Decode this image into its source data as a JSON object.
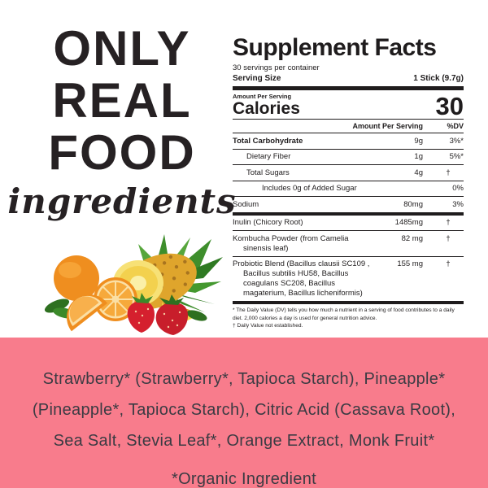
{
  "page": {
    "background": "#FFFFFF"
  },
  "left_panel": {
    "headline": [
      "ONLY",
      "REAL",
      "FOOD"
    ],
    "script_word": "ingredients",
    "text_color": "#262123"
  },
  "fruit_illustration": {
    "alt": "oranges, pineapple and strawberries",
    "fruits": [
      "orange-whole",
      "orange-half",
      "orange-wedge",
      "green-leaves",
      "pineapple-half",
      "pineapple-leaves",
      "strawberries"
    ]
  },
  "supplement_facts": {
    "title": "Supplement Facts",
    "servings_line": "30 servings per container",
    "serving_size_label": "Serving Size",
    "serving_size_value": "1 Stick (9.7g)",
    "amount_per_serving_label": "Amount Per Serving",
    "calories_label": "Calories",
    "calories_value": "30",
    "columns": {
      "amount": "Amount Per Serving",
      "dv": "%DV"
    },
    "rows": [
      {
        "name": "Total Carbohydrate",
        "amount": "9g",
        "dv": "3%*",
        "indent": 0,
        "bold": true
      },
      {
        "name": "Dietary Fiber",
        "amount": "1g",
        "dv": "5%*",
        "indent": 1
      },
      {
        "name": "Total Sugars",
        "amount": "4g",
        "dv": "†",
        "indent": 1
      },
      {
        "name": "Includes 0g of Added Sugar",
        "amount": "",
        "dv": "0%",
        "indent": 2
      },
      {
        "name": "Sodium",
        "amount": "80mg",
        "dv": "3%",
        "indent": 0,
        "thick_after": true
      },
      {
        "name": "Inulin (Chicory Root)",
        "amount": "1485mg",
        "dv": "†",
        "indent": 0
      },
      {
        "name": "Kombucha Powder (from Camelia sinensis leaf)",
        "amount": "82 mg",
        "dv": "†",
        "indent": 0
      },
      {
        "name": "Probiotic Blend (Bacillus clausii SC109 , Bacillus subtilis HU58, Bacillus coagulans SC208, Bacillus magaterium, Bacillus licheniformis)",
        "amount": "155 mg",
        "dv": "†",
        "indent": 0,
        "thick_after": true
      }
    ],
    "footnotes": [
      "* The Daily Value (DV) tells you how much a nutrient in a serving of food contributes to a daily diet. 2,000 calories a day is used for general nutrition advice.",
      "† Daily Value not established."
    ],
    "text_color": "#1F1C1D"
  },
  "ingredients_panel": {
    "background": "#F87C8C",
    "text_color": "#3B3B43",
    "ingredients_text": "Strawberry* (Strawberry*, Tapioca Starch), Pineapple* (Pineapple*, Tapioca Starch), Citric Acid (Cassava Root), Sea Salt, Stevia Leaf*, Orange Extract, Monk Fruit*",
    "organic_note": "*Organic Ingredient"
  }
}
